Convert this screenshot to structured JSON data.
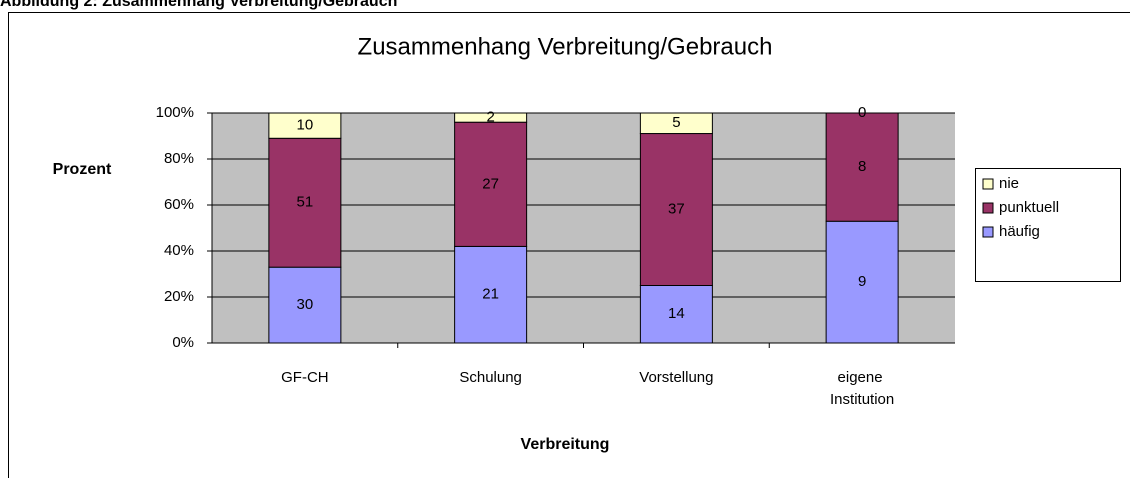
{
  "header": {
    "title": "Abbildung 2: Zusammenhang Verbreitung/Gebrauch"
  },
  "chart_data": {
    "type": "bar",
    "stacking": "percent",
    "title": "Zusammenhang Verbreitung/Gebrauch",
    "x_label": "Verbreitung",
    "y_label": "Prozent",
    "categories": [
      "GF-CH",
      "Schulung",
      "Vorstellung",
      "eigene Institution"
    ],
    "series": [
      {
        "name": "häufig",
        "color": "#9999ff",
        "values": [
          30,
          21,
          14,
          9
        ]
      },
      {
        "name": "punktuell",
        "color": "#993366",
        "values": [
          51,
          27,
          37,
          8
        ]
      },
      {
        "name": "nie",
        "color": "#ffffcc",
        "values": [
          10,
          2,
          5,
          0
        ]
      }
    ],
    "ylim": [
      0,
      100
    ],
    "yticks": [
      {
        "value": 0,
        "label": "0%"
      },
      {
        "value": 20,
        "label": "20%"
      },
      {
        "value": 40,
        "label": "40%"
      },
      {
        "value": 60,
        "label": "60%"
      },
      {
        "value": 80,
        "label": "80%"
      },
      {
        "value": 100,
        "label": "100%"
      }
    ],
    "grid": true,
    "legend": "right"
  }
}
